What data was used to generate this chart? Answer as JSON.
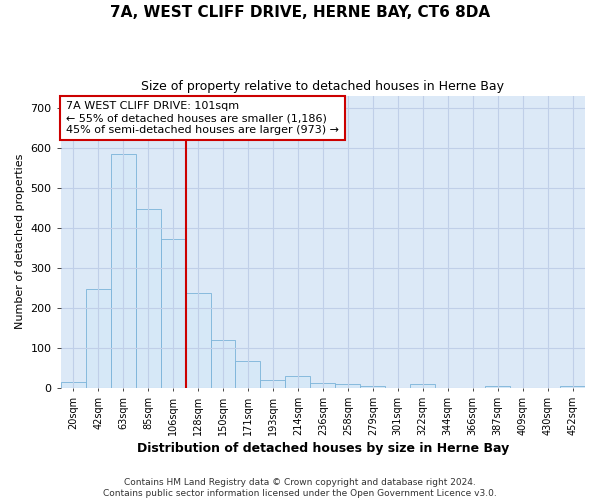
{
  "title": "7A, WEST CLIFF DRIVE, HERNE BAY, CT6 8DA",
  "subtitle": "Size of property relative to detached houses in Herne Bay",
  "xlabel": "Distribution of detached houses by size in Herne Bay",
  "ylabel": "Number of detached properties",
  "bar_color": "#d6e8f7",
  "bar_edge_color": "#7ab3d9",
  "grid_color": "#c0cfe8",
  "vline_color": "#cc0000",
  "annotation_text": "7A WEST CLIFF DRIVE: 101sqm\n← 55% of detached houses are smaller (1,186)\n45% of semi-detached houses are larger (973) →",
  "annotation_box_color": "#ffffff",
  "annotation_box_edge": "#cc0000",
  "categories": [
    "20sqm",
    "42sqm",
    "63sqm",
    "85sqm",
    "106sqm",
    "128sqm",
    "150sqm",
    "171sqm",
    "193sqm",
    "214sqm",
    "236sqm",
    "258sqm",
    "279sqm",
    "301sqm",
    "322sqm",
    "344sqm",
    "366sqm",
    "387sqm",
    "409sqm",
    "430sqm",
    "452sqm"
  ],
  "values": [
    15,
    247,
    585,
    448,
    373,
    237,
    120,
    67,
    20,
    30,
    12,
    11,
    5,
    0,
    9,
    0,
    0,
    6,
    0,
    0,
    5
  ],
  "ylim": [
    0,
    730
  ],
  "yticks": [
    0,
    100,
    200,
    300,
    400,
    500,
    600,
    700
  ],
  "footer": "Contains HM Land Registry data © Crown copyright and database right 2024.\nContains public sector information licensed under the Open Government Licence v3.0.",
  "fig_background": "#ffffff",
  "plot_background": "#dce9f7",
  "vline_index": 4.5
}
